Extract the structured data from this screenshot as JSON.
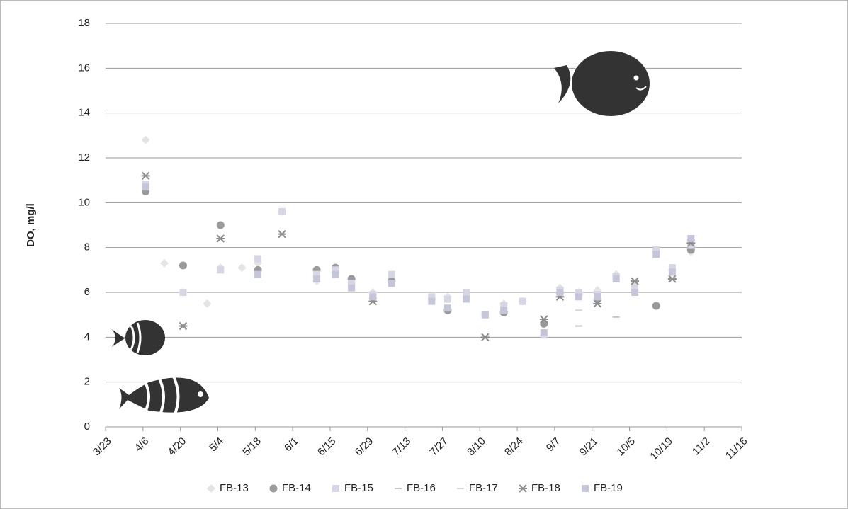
{
  "chart_data": {
    "type": "scatter",
    "y_label": "DO, mg/l",
    "x": [
      "4/7",
      "4/14",
      "4/21",
      "4/30",
      "5/5",
      "5/13",
      "5/19",
      "5/28",
      "6/10",
      "6/17",
      "6/23",
      "7/1",
      "7/8",
      "7/23",
      "7/29",
      "8/5",
      "8/12",
      "8/19",
      "8/26",
      "9/3",
      "9/9",
      "9/16",
      "9/23",
      "9/30",
      "10/7",
      "10/15",
      "10/21",
      "10/28"
    ],
    "xlim": [
      "3/23",
      "11/16"
    ],
    "xticks": [
      "3/23",
      "4/6",
      "4/20",
      "5/4",
      "5/18",
      "6/1",
      "6/15",
      "6/29",
      "7/13",
      "7/27",
      "8/10",
      "8/24",
      "9/7",
      "9/21",
      "10/5",
      "10/19",
      "11/2",
      "11/16"
    ],
    "ylim": [
      0,
      18
    ],
    "yticks": [
      0,
      2,
      4,
      6,
      8,
      10,
      12,
      14,
      16,
      18
    ],
    "grid": true,
    "legend": "bottom",
    "series": [
      {
        "name": "FB-13",
        "color": "#e4e4e4",
        "marker": "diamond",
        "values": [
          12.8,
          7.3,
          6.0,
          5.5,
          7.1,
          7.1,
          7.3,
          9.6,
          6.5,
          6.9,
          6.4,
          6.0,
          6.6,
          5.7,
          5.8,
          5.8,
          5.0,
          5.5,
          5.6,
          4.1,
          6.2,
          6.0,
          6.1,
          6.8,
          6.1,
          7.8,
          7.0,
          7.8
        ]
      },
      {
        "name": "FB-14",
        "color": "#9a9a9a",
        "marker": "circle",
        "values": [
          10.5,
          null,
          7.2,
          null,
          9.0,
          null,
          7.0,
          null,
          7.0,
          7.1,
          6.6,
          null,
          6.5,
          null,
          5.2,
          null,
          null,
          5.1,
          null,
          4.6,
          null,
          5.9,
          5.7,
          null,
          null,
          5.4,
          null,
          7.9
        ]
      },
      {
        "name": "FB-15",
        "color": "#d6d6e4",
        "marker": "square",
        "values": [
          10.8,
          null,
          6.0,
          null,
          7.0,
          null,
          7.5,
          9.6,
          6.8,
          7.0,
          6.4,
          5.9,
          6.8,
          5.8,
          5.7,
          6.0,
          5.0,
          5.4,
          5.6,
          4.1,
          6.1,
          6.0,
          5.9,
          6.7,
          6.2,
          7.9,
          7.1,
          8.1
        ]
      },
      {
        "name": "FB-16",
        "color": "#c4c4c4",
        "marker": "dash",
        "values": [
          null,
          null,
          null,
          null,
          null,
          null,
          null,
          null,
          null,
          null,
          null,
          null,
          null,
          null,
          null,
          null,
          null,
          null,
          null,
          null,
          null,
          4.5,
          null,
          4.9,
          null,
          null,
          null,
          null
        ]
      },
      {
        "name": "FB-17",
        "color": "#d4d4d4",
        "marker": "dash",
        "values": [
          null,
          null,
          null,
          null,
          null,
          null,
          null,
          null,
          null,
          null,
          null,
          null,
          null,
          null,
          null,
          null,
          null,
          null,
          null,
          null,
          null,
          5.2,
          null,
          null,
          6.4,
          null,
          null,
          null
        ]
      },
      {
        "name": "FB-18",
        "color": "#8c8c8c",
        "marker": "star",
        "values": [
          11.2,
          null,
          4.5,
          null,
          8.4,
          null,
          null,
          8.6,
          null,
          null,
          null,
          5.6,
          null,
          null,
          null,
          null,
          4.0,
          null,
          null,
          4.8,
          5.8,
          null,
          5.5,
          null,
          6.5,
          null,
          6.6,
          8.2
        ]
      },
      {
        "name": "FB-19",
        "color": "#c6c6da",
        "marker": "square",
        "values": [
          10.7,
          null,
          null,
          null,
          null,
          null,
          6.8,
          null,
          6.6,
          6.8,
          6.2,
          5.8,
          6.4,
          5.6,
          5.3,
          5.7,
          5.0,
          5.2,
          null,
          4.2,
          6.0,
          5.8,
          5.8,
          6.6,
          6.0,
          7.7,
          6.9,
          8.4
        ]
      }
    ]
  }
}
